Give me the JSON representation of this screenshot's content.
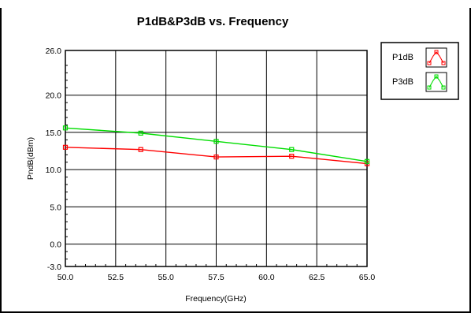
{
  "chart_data": {
    "type": "line",
    "title": "P1dB&P3dB vs. Frequency",
    "xlabel": "Frequency(GHz)",
    "ylabel": "PndB(dBm)",
    "xlim": [
      50.0,
      65.0
    ],
    "ylim": [
      -3.0,
      26.0
    ],
    "x_ticks": [
      "50.0",
      "52.5",
      "55.0",
      "57.5",
      "60.0",
      "62.5",
      "65.0"
    ],
    "x_tick_values": [
      50.0,
      52.5,
      55.0,
      57.5,
      60.0,
      62.5,
      65.0
    ],
    "y_ticks": [
      "-3.0",
      "0.0",
      "5.0",
      "10.0",
      "15.0",
      "20.0",
      "26.0"
    ],
    "y_tick_values": [
      -3.0,
      0.0,
      5.0,
      10.0,
      15.0,
      20.0,
      26.0
    ],
    "grid": true,
    "legend_position": "right",
    "series": [
      {
        "name": "P1dB",
        "color": "#ff0000",
        "x": [
          50.0,
          53.75,
          57.5,
          61.25,
          65.0
        ],
        "y": [
          13.0,
          12.7,
          11.7,
          11.8,
          10.8
        ]
      },
      {
        "name": "P3dB",
        "color": "#00dd00",
        "x": [
          50.0,
          53.75,
          57.5,
          61.25,
          65.0
        ],
        "y": [
          15.6,
          14.9,
          13.8,
          12.7,
          11.1
        ]
      }
    ]
  }
}
